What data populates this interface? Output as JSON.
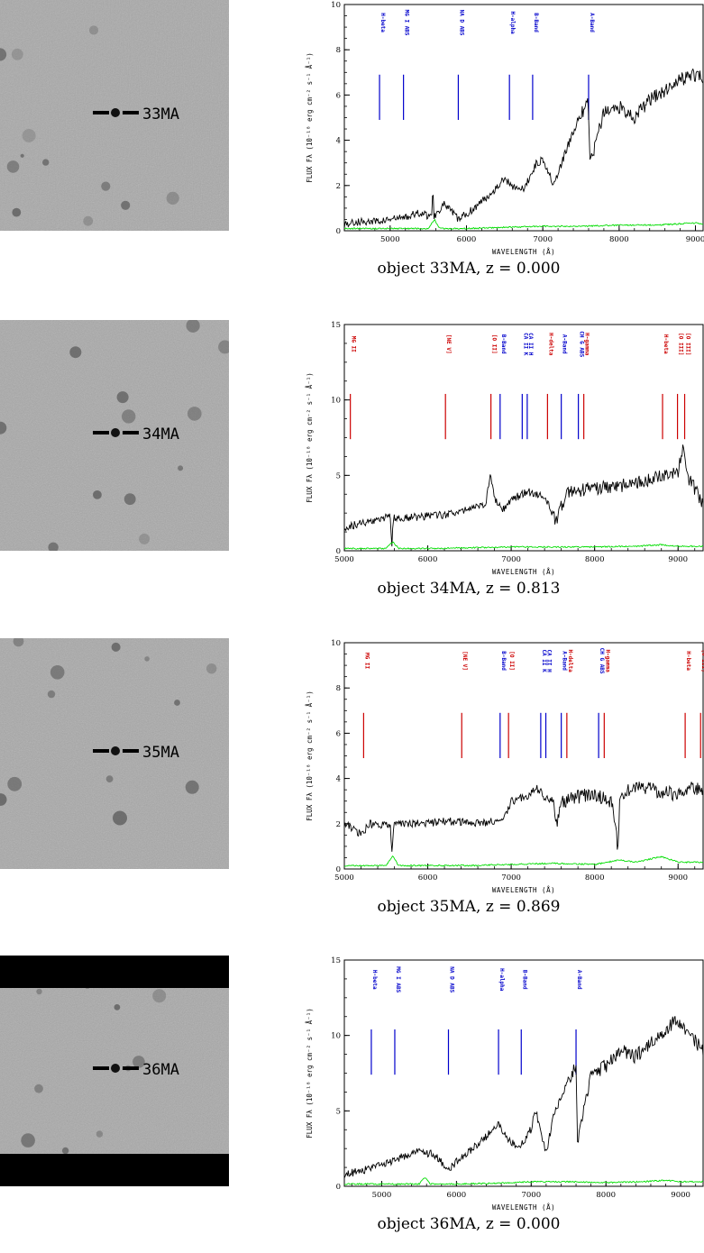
{
  "chart_data": [
    {
      "type": "line",
      "object": "33MA",
      "caption": "object 33MA, z = 0.000",
      "xlabel": "WAVELENGTH (Å)",
      "ylabel": "FLUX Fλ (10⁻¹⁸ erg cm⁻² s⁻¹ Å⁻¹)",
      "xlim": [
        4400,
        9100
      ],
      "ylim": [
        0,
        10
      ],
      "xticks": [
        5000,
        6000,
        7000,
        8000,
        9000
      ],
      "yticks": [
        0,
        2,
        4,
        6,
        8,
        10
      ],
      "lines": [
        {
          "label": "H-beta",
          "x": 4861,
          "color": "#0000cc"
        },
        {
          "label": "MG I ABS",
          "x": 5175,
          "color": "#0000cc"
        },
        {
          "label": "NA D ABS",
          "x": 5893,
          "color": "#0000cc"
        },
        {
          "label": "H-alpha",
          "x": 6563,
          "color": "#0000cc"
        },
        {
          "label": "B-Band",
          "x": 6867,
          "color": "#0000cc"
        },
        {
          "label": "A-Band",
          "x": 7600,
          "color": "#0000cc"
        }
      ],
      "spectrum": {
        "x": [
          4400,
          4600,
          4800,
          5000,
          5200,
          5400,
          5550,
          5560,
          5570,
          5700,
          5900,
          6100,
          6300,
          6500,
          6600,
          6750,
          6900,
          7000,
          7150,
          7300,
          7450,
          7550,
          7590,
          7620,
          7800,
          8000,
          8200,
          8400,
          8600,
          8800,
          9000,
          9100
        ],
        "y": [
          0.3,
          0.4,
          0.4,
          0.5,
          0.6,
          0.8,
          0.6,
          2.7,
          0.6,
          1.2,
          0.5,
          1.0,
          1.6,
          2.3,
          2.0,
          1.8,
          2.9,
          3.2,
          2.0,
          3.5,
          4.8,
          5.4,
          5.7,
          3.0,
          5.2,
          5.5,
          5.0,
          5.8,
          6.2,
          6.7,
          6.9,
          6.8
        ]
      },
      "noise": {
        "x": [
          4400,
          5000,
          5500,
          5580,
          5650,
          6000,
          6500,
          7000,
          7500,
          8000,
          8500,
          9000,
          9100
        ],
        "y": [
          0.1,
          0.1,
          0.1,
          0.5,
          0.1,
          0.1,
          0.15,
          0.2,
          0.2,
          0.25,
          0.25,
          0.35,
          0.3
        ]
      },
      "label_y": 9.2,
      "line_range": [
        4.9,
        6.9
      ]
    },
    {
      "type": "line",
      "object": "34MA",
      "caption": "object 34MA, z = 0.813",
      "xlabel": "WAVELENGTH (Å)",
      "ylabel": "FLUX Fλ (10⁻¹⁸ erg cm⁻² s⁻¹ Å⁻¹)",
      "xlim": [
        5000,
        9300
      ],
      "ylim": [
        0,
        15
      ],
      "xticks": [
        5000,
        6000,
        7000,
        8000,
        9000
      ],
      "yticks": [
        0,
        5,
        10,
        15
      ],
      "lines": [
        {
          "label": "MG II",
          "x": 5072,
          "color": "#cc0000"
        },
        {
          "label": "[NE V]",
          "x": 6212,
          "color": "#cc0000"
        },
        {
          "label": "[O II]",
          "x": 6757,
          "color": "#cc0000"
        },
        {
          "label": "B-Band",
          "x": 6867,
          "color": "#0000cc"
        },
        {
          "label": "CA II K",
          "x": 7132,
          "color": "#0000cc"
        },
        {
          "label": "CA II H",
          "x": 7192,
          "color": "#0000cc"
        },
        {
          "label": "H-delta",
          "x": 7435,
          "color": "#cc0000"
        },
        {
          "label": "A-Band",
          "x": 7600,
          "color": "#0000cc"
        },
        {
          "label": "CH G ABS",
          "x": 7805,
          "color": "#0000cc"
        },
        {
          "label": "H-gamma",
          "x": 7870,
          "color": "#cc0000"
        },
        {
          "label": "H-beta",
          "x": 8814,
          "color": "#cc0000"
        },
        {
          "label": "[O III]",
          "x": 8993,
          "color": "#cc0000"
        },
        {
          "label": "[O III]",
          "x": 9079,
          "color": "#cc0000"
        }
      ],
      "spectrum": {
        "x": [
          5000,
          5200,
          5400,
          5550,
          5570,
          5590,
          5800,
          6000,
          6200,
          6400,
          6600,
          6700,
          6750,
          6800,
          6900,
          7000,
          7200,
          7400,
          7550,
          7600,
          7700,
          7900,
          8100,
          8300,
          8500,
          8700,
          8900,
          9000,
          9060,
          9100,
          9300
        ],
        "y": [
          1.6,
          1.8,
          2.0,
          2.3,
          0.3,
          2.2,
          2.2,
          2.3,
          2.4,
          2.6,
          2.9,
          3.2,
          5.1,
          3.4,
          2.7,
          3.4,
          3.9,
          3.6,
          1.9,
          3.0,
          3.9,
          4.1,
          4.2,
          4.3,
          4.5,
          4.8,
          5.0,
          5.2,
          7.0,
          5.0,
          3.2
        ]
      },
      "noise": {
        "x": [
          5000,
          5500,
          5580,
          5650,
          6000,
          6500,
          7000,
          7500,
          8000,
          8500,
          8800,
          9000,
          9300
        ],
        "y": [
          0.15,
          0.15,
          0.6,
          0.15,
          0.15,
          0.2,
          0.25,
          0.25,
          0.25,
          0.3,
          0.4,
          0.3,
          0.3
        ]
      },
      "label_y": 13.7,
      "line_range": [
        7.4,
        10.4
      ]
    },
    {
      "type": "line",
      "object": "35MA",
      "caption": "object 35MA, z = 0.869",
      "xlabel": "WAVELENGTH (Å)",
      "ylabel": "FLUX Fλ (10⁻¹⁸ erg cm⁻² s⁻¹ Å⁻¹)",
      "xlim": [
        5000,
        9300
      ],
      "ylim": [
        0,
        10
      ],
      "xticks": [
        5000,
        6000,
        7000,
        8000,
        9000
      ],
      "yticks": [
        0,
        2,
        4,
        6,
        8,
        10
      ],
      "lines": [
        {
          "label": "MG II",
          "x": 5231,
          "color": "#cc0000"
        },
        {
          "label": "[NE V]",
          "x": 6407,
          "color": "#cc0000"
        },
        {
          "label": "B-Band",
          "x": 6867,
          "color": "#0000cc"
        },
        {
          "label": "[O II]",
          "x": 6968,
          "color": "#cc0000"
        },
        {
          "label": "CA II K",
          "x": 7354,
          "color": "#0000cc"
        },
        {
          "label": "CA II H",
          "x": 7415,
          "color": "#0000cc"
        },
        {
          "label": "A-Band",
          "x": 7600,
          "color": "#0000cc"
        },
        {
          "label": "H-delta",
          "x": 7667,
          "color": "#cc0000"
        },
        {
          "label": "CH G ABS",
          "x": 8048,
          "color": "#0000cc"
        },
        {
          "label": "H-gamma",
          "x": 8115,
          "color": "#cc0000"
        },
        {
          "label": "H-beta",
          "x": 9085,
          "color": "#cc0000"
        },
        {
          "label": "[O III]",
          "x": 9270,
          "color": "#cc0000"
        }
      ],
      "spectrum": {
        "x": [
          5000,
          5100,
          5200,
          5300,
          5400,
          5550,
          5570,
          5600,
          5800,
          6000,
          6200,
          6400,
          6600,
          6800,
          6900,
          7000,
          7200,
          7300,
          7400,
          7500,
          7550,
          7600,
          7800,
          8000,
          8200,
          8280,
          8300,
          8400,
          8600,
          8800,
          9000,
          9200,
          9300
        ],
        "y": [
          2.0,
          1.8,
          1.5,
          2.0,
          1.9,
          2.0,
          0.8,
          2.0,
          2.0,
          2.0,
          2.1,
          2.1,
          2.0,
          2.1,
          2.1,
          3.0,
          3.2,
          3.6,
          3.2,
          3.0,
          1.9,
          2.9,
          3.2,
          3.3,
          3.0,
          0.9,
          3.1,
          3.5,
          3.6,
          3.4,
          3.3,
          3.6,
          3.4
        ]
      },
      "noise": {
        "x": [
          5000,
          5500,
          5580,
          5650,
          6000,
          6500,
          7000,
          7500,
          8000,
          8300,
          8500,
          8800,
          9000,
          9300
        ],
        "y": [
          0.15,
          0.15,
          0.6,
          0.15,
          0.15,
          0.15,
          0.2,
          0.25,
          0.2,
          0.4,
          0.3,
          0.55,
          0.3,
          0.3
        ]
      },
      "label_y": 9.2,
      "line_range": [
        4.9,
        6.9
      ]
    },
    {
      "type": "line",
      "object": "36MA",
      "caption": "object 36MA, z = 0.000",
      "xlabel": "WAVELENGTH (Å)",
      "ylabel": "FLUX Fλ (10⁻¹⁸ erg cm⁻² s⁻¹ Å⁻¹)",
      "xlim": [
        4500,
        9300
      ],
      "ylim": [
        0,
        15
      ],
      "xticks": [
        5000,
        6000,
        7000,
        8000,
        9000
      ],
      "yticks": [
        0,
        5,
        10,
        15
      ],
      "lines": [
        {
          "label": "H-beta",
          "x": 4861,
          "color": "#0000cc"
        },
        {
          "label": "MG I ABS",
          "x": 5175,
          "color": "#0000cc"
        },
        {
          "label": "NA D ABS",
          "x": 5893,
          "color": "#0000cc"
        },
        {
          "label": "H-alpha",
          "x": 6563,
          "color": "#0000cc"
        },
        {
          "label": "B-Band",
          "x": 6867,
          "color": "#0000cc"
        },
        {
          "label": "A-Band",
          "x": 7600,
          "color": "#0000cc"
        }
      ],
      "spectrum": {
        "x": [
          4500,
          4700,
          4900,
          5100,
          5300,
          5500,
          5700,
          5900,
          6100,
          6300,
          6500,
          6550,
          6700,
          6850,
          7000,
          7050,
          7200,
          7300,
          7450,
          7550,
          7600,
          7620,
          7800,
          8000,
          8200,
          8400,
          8600,
          8800,
          8900,
          9100,
          9300
        ],
        "y": [
          0.8,
          1.0,
          1.3,
          1.6,
          2.0,
          2.3,
          2.1,
          1.1,
          2.1,
          2.8,
          3.8,
          4.2,
          3.0,
          2.6,
          3.8,
          5.2,
          2.2,
          4.6,
          6.5,
          7.6,
          8.0,
          3.0,
          7.2,
          8.0,
          9.0,
          8.6,
          9.5,
          10.0,
          11.0,
          10.2,
          9.0
        ]
      },
      "noise": {
        "x": [
          4500,
          5000,
          5500,
          5580,
          5650,
          6000,
          6500,
          7000,
          7500,
          8000,
          8500,
          8800,
          9000,
          9300
        ],
        "y": [
          0.15,
          0.15,
          0.15,
          0.6,
          0.15,
          0.15,
          0.2,
          0.3,
          0.3,
          0.25,
          0.3,
          0.4,
          0.3,
          0.3
        ]
      },
      "label_y": 13.7,
      "line_range": [
        7.4,
        10.4
      ]
    }
  ],
  "images": [
    {
      "label": "33MA",
      "band_top": 0,
      "band_bottom": 0
    },
    {
      "label": "34MA",
      "band_top": 0,
      "band_bottom": 0
    },
    {
      "label": "35MA",
      "band_top": 0,
      "band_bottom": 0
    },
    {
      "label": "36MA",
      "band_top": 0.14,
      "band_bottom": 0.14
    }
  ]
}
